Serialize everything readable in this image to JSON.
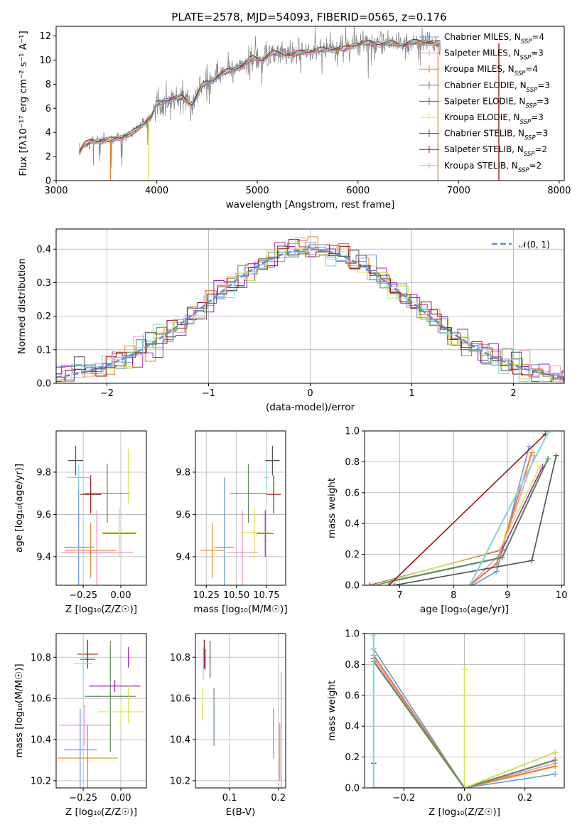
{
  "figure": {
    "title": "PLATE=2578, MJD=54093, FIBERID=0565, z=0.176"
  },
  "colors": {
    "chabrier_miles": "#6495ED",
    "salpeter_miles": "#F08CC8",
    "kroupa_miles": "#E8822A",
    "chabrier_elodie": "#5B8C5A",
    "salpeter_elodie": "#A020C0",
    "kroupa_elodie": "#D6E84A",
    "chabrier_stelib": "#505050",
    "salpeter_stelib": "#A01010",
    "kroupa_stelib": "#80D8E0",
    "data": "#808080",
    "normal": "#5B8FD8"
  },
  "models": [
    {
      "key": "chabrier_miles",
      "imf": "Chabrier",
      "lib": "MILES",
      "n": "4"
    },
    {
      "key": "salpeter_miles",
      "imf": "Salpeter",
      "lib": "MILES",
      "n": "3"
    },
    {
      "key": "kroupa_miles",
      "imf": "Kroupa",
      "lib": "MILES",
      "n": "4"
    },
    {
      "key": "chabrier_elodie",
      "imf": "Chabrier",
      "lib": "ELODIE",
      "n": "3"
    },
    {
      "key": "salpeter_elodie",
      "imf": "Salpeter",
      "lib": "ELODIE",
      "n": "3"
    },
    {
      "key": "kroupa_elodie",
      "imf": "Kroupa",
      "lib": "ELODIE",
      "n": "3"
    },
    {
      "key": "chabrier_stelib",
      "imf": "Chabrier",
      "lib": "STELIB",
      "n": "3"
    },
    {
      "key": "salpeter_stelib",
      "imf": "Salpeter",
      "lib": "STELIB",
      "n": "2"
    },
    {
      "key": "kroupa_stelib",
      "imf": "Kroupa",
      "lib": "STELIB",
      "n": "2"
    }
  ],
  "chart_data": [
    {
      "id": "spectrum",
      "type": "line",
      "xlabel": "wavelength [Angstrom, rest frame]",
      "ylabel": "Flux [fλ10⁻¹⁷ erg cm⁻² s⁻¹ A⁻¹]",
      "xlim": [
        3000,
        8050
      ],
      "ylim": [
        0,
        12.8
      ],
      "xticks": [
        3000,
        4000,
        5000,
        6000,
        7000,
        8000
      ],
      "yticks": [
        0,
        2,
        4,
        6,
        8,
        10,
        12
      ],
      "grid": false,
      "legend": "top-right",
      "continuum": [
        [
          3230,
          2.3
        ],
        [
          3280,
          3.0
        ],
        [
          3350,
          3.3
        ],
        [
          3450,
          3.3
        ],
        [
          3550,
          3.4
        ],
        [
          3650,
          3.6
        ],
        [
          3750,
          3.9
        ],
        [
          3850,
          4.6
        ],
        [
          3950,
          5.3
        ],
        [
          4000,
          6.4
        ],
        [
          4050,
          6.5
        ],
        [
          4150,
          6.8
        ],
        [
          4250,
          6.9
        ],
        [
          4350,
          6.3
        ],
        [
          4450,
          7.9
        ],
        [
          4550,
          8.3
        ],
        [
          4650,
          8.9
        ],
        [
          4750,
          9.2
        ],
        [
          4850,
          9.5
        ],
        [
          4950,
          10.2
        ],
        [
          5050,
          10.0
        ],
        [
          5150,
          10.6
        ],
        [
          5250,
          10.5
        ],
        [
          5350,
          10.4
        ],
        [
          5450,
          10.7
        ],
        [
          5550,
          10.7
        ],
        [
          5650,
          10.9
        ],
        [
          5750,
          10.9
        ],
        [
          5850,
          10.9
        ],
        [
          5950,
          11.2
        ],
        [
          6050,
          11.4
        ],
        [
          6150,
          11.4
        ],
        [
          6250,
          11.3
        ],
        [
          6350,
          11.4
        ],
        [
          6450,
          11.2
        ],
        [
          6550,
          11.5
        ],
        [
          6650,
          11.5
        ],
        [
          6750,
          11.4
        ],
        [
          6820,
          11.4
        ]
      ],
      "drops": [
        {
          "model": "kroupa_miles",
          "x": 3540
        },
        {
          "model": "kroupa_elodie",
          "x": 3920
        },
        {
          "model": "kroupa_miles",
          "x": 6795
        },
        {
          "model": "salpeter_stelib",
          "x": 7400
        }
      ],
      "legend_entries": [
        "Chabrier MILES, N_SSP=4",
        "Salpeter MILES, N_SSP=3",
        "Kroupa MILES, N_SSP=4",
        "Chabrier ELODIE, N_SSP=3",
        "Salpeter ELODIE, N_SSP=3",
        "Kroupa ELODIE, N_SSP=3",
        "Chabrier STELIB, N_SSP=3",
        "Salpeter STELIB, N_SSP=2",
        "Kroupa STELIB, N_SSP=2"
      ]
    },
    {
      "id": "residuals",
      "type": "line",
      "xlabel": "(data-model)/error",
      "ylabel": "Normed distribution",
      "xlim": [
        -2.5,
        2.5
      ],
      "ylim": [
        0,
        0.46
      ],
      "xticks": [
        -2,
        -1,
        0,
        1,
        2
      ],
      "yticks": [
        0.0,
        0.1,
        0.2,
        0.3,
        0.4
      ],
      "grid": true,
      "legend": "top-right",
      "legend_label": "𝒩(0, 1)"
    },
    {
      "id": "age_vs_Z",
      "type": "scatter",
      "xlabel": "Z [log₁₀(Z/Z☉)]",
      "ylabel": "age  [log₁₀(age/yr)]",
      "xlim": [
        -0.43,
        0.17
      ],
      "ylim": [
        9.265,
        9.995
      ],
      "xticks": [
        -0.25,
        0.0
      ],
      "xtick_labels": [
        "−0.25",
        "0.00"
      ],
      "yticks": [
        9.4,
        9.6,
        9.8
      ],
      "grid": true,
      "points": [
        {
          "model": "chabrier_miles",
          "x": -0.28,
          "xerr": 0.1,
          "y": 9.445,
          "yerr": 0.33
        },
        {
          "model": "salpeter_miles",
          "x": -0.16,
          "xerr": 0.24,
          "y": 9.42,
          "yerr": 0.2
        },
        {
          "model": "kroupa_miles",
          "x": -0.2,
          "xerr": 0.17,
          "y": 9.43,
          "yerr": 0.13
        },
        {
          "model": "chabrier_elodie",
          "x": -0.09,
          "xerr": 0.15,
          "y": 9.7,
          "yerr": 0.14
        },
        {
          "model": "salpeter_elodie",
          "x": -0.01,
          "xerr": 0.11,
          "y": 9.51,
          "yerr": 0.11
        },
        {
          "model": "kroupa_elodie",
          "x": -0.01,
          "xerr": 0.12,
          "y": 9.515,
          "yerr": 0.12
        },
        {
          "model": "chabrier_stelib",
          "x": -0.3,
          "xerr": 0.05,
          "y": 9.855,
          "yerr": 0.07
        },
        {
          "model": "salpeter_stelib",
          "x": -0.2,
          "xerr": 0.07,
          "y": 9.695,
          "yerr": 0.09
        },
        {
          "model": "kroupa_stelib",
          "x": -0.28,
          "xerr": 0.08,
          "y": 9.775,
          "yerr": 0.06
        },
        {
          "model": "kroupa_elodie",
          "x": 0.05,
          "xerr": 0.0,
          "y": 9.78,
          "yerr": 0.13
        }
      ]
    },
    {
      "id": "age_vs_mass",
      "type": "scatter",
      "xlabel": "mass [log₁₀(M/M☉)]",
      "ylabel": "",
      "xlim": [
        10.16,
        10.91
      ],
      "ylim": [
        9.265,
        9.995
      ],
      "xticks": [
        10.25,
        10.5,
        10.75
      ],
      "xtick_labels": [
        "10.25",
        "10.50",
        "10.75"
      ],
      "yticks": [
        9.4,
        9.6,
        9.8
      ],
      "grid": true,
      "points": [
        {
          "model": "chabrier_miles",
          "x": 10.4,
          "xerr": 0.08,
          "y": 9.445,
          "yerr": 0.33
        },
        {
          "model": "salpeter_miles",
          "x": 10.55,
          "xerr": 0.13,
          "y": 9.42,
          "yerr": 0.2
        },
        {
          "model": "kroupa_miles",
          "x": 10.3,
          "xerr": 0.1,
          "y": 9.43,
          "yerr": 0.13
        },
        {
          "model": "chabrier_elodie",
          "x": 10.6,
          "xerr": 0.15,
          "y": 9.7,
          "yerr": 0.14
        },
        {
          "model": "salpeter_elodie",
          "x": 10.74,
          "xerr": 0.07,
          "y": 9.51,
          "yerr": 0.11
        },
        {
          "model": "kroupa_elodie",
          "x": 10.65,
          "xerr": 0.12,
          "y": 9.515,
          "yerr": 0.12
        },
        {
          "model": "chabrier_stelib",
          "x": 10.8,
          "xerr": 0.06,
          "y": 9.855,
          "yerr": 0.07
        },
        {
          "model": "salpeter_stelib",
          "x": 10.81,
          "xerr": 0.06,
          "y": 9.695,
          "yerr": 0.09
        },
        {
          "model": "kroupa_stelib",
          "x": 10.75,
          "xerr": 0.02,
          "y": 9.775,
          "yerr": 0.06
        }
      ]
    },
    {
      "id": "mass_weight_vs_age",
      "type": "line",
      "xlabel": "age  [log₁₀(age/yr)]",
      "ylabel": "mass weight",
      "xlim": [
        6.35,
        10.05
      ],
      "ylim": [
        0,
        1
      ],
      "xticks": [
        7,
        8,
        9,
        10
      ],
      "yticks": [
        0.0,
        0.2,
        0.4,
        0.6,
        0.8,
        1.0
      ],
      "grid": true,
      "series": [
        {
          "model": "chabrier_miles",
          "x": [
            8.35,
            8.8,
            9.4
          ],
          "y": [
            0.0,
            0.09,
            0.9
          ]
        },
        {
          "model": "salpeter_miles",
          "x": [
            8.3,
            8.85,
            9.5
          ],
          "y": [
            0.0,
            0.2,
            0.84
          ]
        },
        {
          "model": "kroupa_miles",
          "x": [
            8.3,
            8.8,
            9.45
          ],
          "y": [
            0.0,
            0.14,
            0.86
          ]
        },
        {
          "model": "chabrier_elodie",
          "x": [
            6.5,
            8.9,
            9.75
          ],
          "y": [
            0.0,
            0.18,
            0.82
          ]
        },
        {
          "model": "salpeter_elodie",
          "x": [
            6.45,
            8.9,
            9.65
          ],
          "y": [
            0.0,
            0.23,
            0.77
          ]
        },
        {
          "model": "kroupa_elodie",
          "x": [
            6.5,
            8.85,
            9.6
          ],
          "y": [
            0.0,
            0.23,
            0.77
          ]
        },
        {
          "model": "chabrier_stelib",
          "x": [
            6.9,
            9.45,
            9.9
          ],
          "y": [
            0.0,
            0.16,
            0.84
          ]
        },
        {
          "model": "salpeter_stelib",
          "x": [
            6.8,
            9.7
          ],
          "y": [
            0.0,
            0.98
          ]
        },
        {
          "model": "kroupa_stelib",
          "x": [
            8.3,
            9.75
          ],
          "y": [
            0.0,
            0.99
          ]
        }
      ]
    },
    {
      "id": "mass_vs_Z",
      "type": "scatter",
      "xlabel": "Z [log₁₀(Z/Z☉)]",
      "ylabel": "mass [log₁₀(M/M☉)]",
      "xlim": [
        -0.43,
        0.17
      ],
      "ylim": [
        10.165,
        10.915
      ],
      "xticks": [
        -0.25,
        0.0
      ],
      "xtick_labels": [
        "−0.25",
        "0.00"
      ],
      "yticks": [
        10.2,
        10.4,
        10.6,
        10.8
      ],
      "grid": true,
      "points": [
        {
          "model": "chabrier_miles",
          "x": -0.27,
          "xerr": 0.11,
          "y": 10.35,
          "yerr": 0.2
        },
        {
          "model": "salpeter_miles",
          "x": -0.24,
          "xerr": 0.17,
          "y": 10.47,
          "yerr": 0.1
        },
        {
          "model": "kroupa_miles",
          "x": -0.22,
          "xerr": 0.2,
          "y": 10.31,
          "yerr": 0.16
        },
        {
          "model": "chabrier_elodie",
          "x": -0.07,
          "xerr": 0.17,
          "y": 10.61,
          "yerr": 0.27
        },
        {
          "model": "salpeter_elodie",
          "x": -0.04,
          "xerr": 0.17,
          "y": 10.66,
          "yerr": 0.03
        },
        {
          "model": "kroupa_elodie",
          "x": 0.0,
          "xerr": 0.15,
          "y": 10.535,
          "yerr": 0.055
        },
        {
          "model": "chabrier_stelib",
          "x": -0.22,
          "xerr": 0.05,
          "y": 10.79,
          "yerr": 0.01
        },
        {
          "model": "salpeter_stelib",
          "x": -0.22,
          "xerr": 0.07,
          "y": 10.815,
          "yerr": 0.07
        },
        {
          "model": "kroupa_stelib",
          "x": -0.25,
          "xerr": 0.06,
          "y": 10.77,
          "yerr": 0.08
        },
        {
          "model": "salpeter_elodie",
          "x": 0.05,
          "xerr": 0.0,
          "y": 10.8,
          "yerr": 0.05
        },
        {
          "model": "kroupa_elodie",
          "x": 0.05,
          "xerr": 0.0,
          "y": 10.57,
          "yerr": 0.09
        }
      ]
    },
    {
      "id": "mass_vs_ebv",
      "type": "scatter",
      "xlabel": "E(B-V)",
      "ylabel": "",
      "xlim": [
        0.03,
        0.215
      ],
      "ylim": [
        10.165,
        10.915
      ],
      "xticks": [
        0.1,
        0.2
      ],
      "yticks": [
        10.2,
        10.4,
        10.6,
        10.8
      ],
      "grid": true,
      "points": [
        {
          "model": "chabrier_miles",
          "x": 0.19,
          "xerr": 0.0,
          "y": 10.43,
          "yerr": 0.12
        },
        {
          "model": "salpeter_miles",
          "x": 0.206,
          "xerr": 0.0,
          "y": 10.35,
          "yerr": 0.38
        },
        {
          "model": "kroupa_miles",
          "x": 0.203,
          "xerr": 0.0,
          "y": 10.34,
          "yerr": 0.14
        },
        {
          "model": "chabrier_elodie",
          "x": 0.068,
          "xerr": 0.0,
          "y": 10.51,
          "yerr": 0.14
        },
        {
          "model": "kroupa_elodie",
          "x": 0.044,
          "xerr": 0.0,
          "y": 10.57,
          "yerr": 0.08
        },
        {
          "model": "chabrier_stelib",
          "x": 0.06,
          "xerr": 0.0,
          "y": 10.79,
          "yerr": 0.09
        },
        {
          "model": "salpeter_stelib",
          "x": 0.048,
          "xerr": 0.0,
          "y": 10.815,
          "yerr": 0.07
        },
        {
          "model": "kroupa_stelib",
          "x": 0.046,
          "xerr": 0.0,
          "y": 10.77,
          "yerr": 0.08
        },
        {
          "model": "salpeter_elodie",
          "x": 0.05,
          "xerr": 0.0,
          "y": 10.79,
          "yerr": 0.05
        }
      ]
    },
    {
      "id": "mass_weight_vs_Z",
      "type": "line",
      "xlabel": "Z [log₁₀(Z/Z☉)]",
      "ylabel": "mass weight",
      "xlim": [
        -0.33,
        0.33
      ],
      "ylim": [
        0,
        1
      ],
      "xticks": [
        -0.2,
        0.0,
        0.2
      ],
      "xtick_labels": [
        "−0.2",
        "0.0",
        "0.2"
      ],
      "yticks": [
        0.0,
        0.2,
        0.4,
        0.6,
        0.8,
        1.0
      ],
      "grid": true,
      "series": [
        {
          "model": "chabrier_miles",
          "x": [
            -0.3,
            0.0,
            0.3
          ],
          "y": [
            0.9,
            0.0,
            0.09
          ]
        },
        {
          "model": "salpeter_miles",
          "x": [
            -0.3,
            0.0,
            0.3
          ],
          "y": [
            0.84,
            0.0,
            0.16
          ]
        },
        {
          "model": "kroupa_miles",
          "x": [
            -0.3,
            0.0,
            0.3
          ],
          "y": [
            0.86,
            0.0,
            0.14
          ]
        },
        {
          "model": "chabrier_elodie",
          "x": [
            -0.3,
            0.0,
            0.3
          ],
          "y": [
            0.82,
            0.0,
            0.18
          ]
        },
        {
          "model": "salpeter_elodie",
          "x": [
            -0.3,
            0.0,
            0.3
          ],
          "y": [
            0.0,
            0.0,
            0.23
          ]
        },
        {
          "model": "kroupa_elodie",
          "x": [
            0.0,
            0.0,
            0.3
          ],
          "y": [
            0.77,
            0.0,
            0.23
          ]
        },
        {
          "model": "chabrier_stelib",
          "x": [
            -0.3,
            -0.3,
            -0.3
          ],
          "y": [
            0.84,
            0.16,
            0.0
          ]
        },
        {
          "model": "kroupa_stelib",
          "x": [
            -0.3,
            -0.3
          ],
          "y": [
            0.0,
            0.99
          ]
        }
      ]
    }
  ]
}
